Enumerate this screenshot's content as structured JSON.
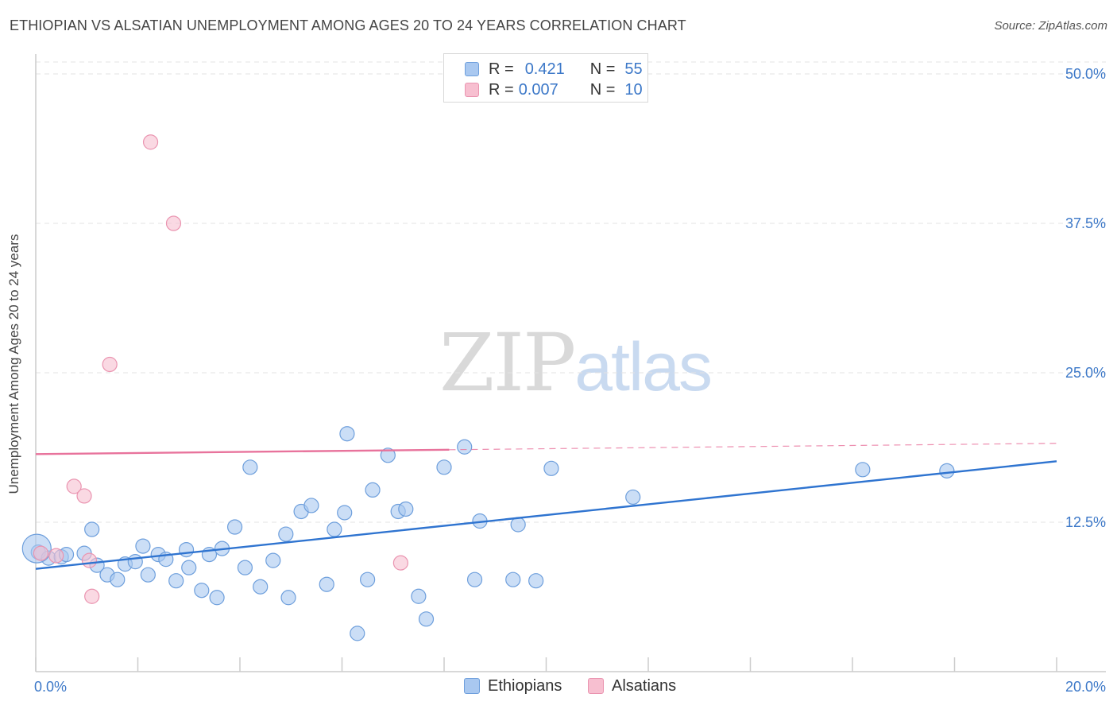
{
  "title": "ETHIOPIAN VS ALSATIAN UNEMPLOYMENT AMONG AGES 20 TO 24 YEARS CORRELATION CHART",
  "source": "Source: ZipAtlas.com",
  "watermark": {
    "zip": "ZIP",
    "atlas": "atlas"
  },
  "legend_top": {
    "rows": [
      {
        "r_label": "R =",
        "r_value": "0.421",
        "n_label": "N =",
        "n_value": "55"
      },
      {
        "r_label": "R =",
        "r_value": "0.007",
        "n_label": "N =",
        "n_value": "10"
      }
    ]
  },
  "legend_bottom": [
    "Ethiopians",
    "Alsatians"
  ],
  "chart_data": {
    "type": "scatter",
    "title": "ETHIOPIAN VS ALSATIAN UNEMPLOYMENT AMONG AGES 20 TO 24 YEARS CORRELATION CHART",
    "xlabel": "",
    "ylabel": "Unemployment Among Ages 20 to 24 years",
    "xlim": [
      0,
      20
    ],
    "ylim": [
      0,
      51
    ],
    "x_tick_labels": [
      "0.0%",
      "20.0%"
    ],
    "y_ticks": [
      12.5,
      25.0,
      37.5,
      50.0
    ],
    "y_tick_labels": [
      "12.5%",
      "25.0%",
      "37.5%",
      "50.0%"
    ],
    "grid": true,
    "colors": {
      "ethiopians_fill": "#a9c8f0",
      "ethiopians_stroke": "#6e9fdc",
      "ethiopians_line": "#2f74d0",
      "alsatians_fill": "#f7bfd0",
      "alsatians_stroke": "#ea94b0",
      "alsatians_line": "#e8739c",
      "tick_label": "#3c78c8",
      "grid": "#e3e3e3",
      "axis": "#cccccc"
    },
    "series": [
      {
        "name": "Ethiopians",
        "trend": {
          "x": [
            0,
            20
          ],
          "y": [
            8.6,
            17.6
          ],
          "dashed_from": null
        },
        "points": [
          [
            0.05,
            10.0
          ],
          [
            0.25,
            9.5
          ],
          [
            0.5,
            9.6
          ],
          [
            0.6,
            9.8
          ],
          [
            0.95,
            9.9
          ],
          [
            1.1,
            11.9
          ],
          [
            1.2,
            8.9
          ],
          [
            1.4,
            8.1
          ],
          [
            1.6,
            7.7
          ],
          [
            1.75,
            9.0
          ],
          [
            1.95,
            9.2
          ],
          [
            2.1,
            10.5
          ],
          [
            2.2,
            8.1
          ],
          [
            2.4,
            9.8
          ],
          [
            2.55,
            9.4
          ],
          [
            2.75,
            7.6
          ],
          [
            2.95,
            10.2
          ],
          [
            3.0,
            8.7
          ],
          [
            3.25,
            6.8
          ],
          [
            3.4,
            9.8
          ],
          [
            3.55,
            6.2
          ],
          [
            3.65,
            10.3
          ],
          [
            3.9,
            12.1
          ],
          [
            4.1,
            8.7
          ],
          [
            4.2,
            17.1
          ],
          [
            4.4,
            7.1
          ],
          [
            4.65,
            9.3
          ],
          [
            4.9,
            11.5
          ],
          [
            4.95,
            6.2
          ],
          [
            5.2,
            13.4
          ],
          [
            5.4,
            13.9
          ],
          [
            5.7,
            7.3
          ],
          [
            5.85,
            11.9
          ],
          [
            6.05,
            13.3
          ],
          [
            6.1,
            19.9
          ],
          [
            6.3,
            3.2
          ],
          [
            6.5,
            7.7
          ],
          [
            6.6,
            15.2
          ],
          [
            6.9,
            18.1
          ],
          [
            7.1,
            13.4
          ],
          [
            7.25,
            13.6
          ],
          [
            7.5,
            6.3
          ],
          [
            7.65,
            4.4
          ],
          [
            8.0,
            17.1
          ],
          [
            8.4,
            18.8
          ],
          [
            8.6,
            7.7
          ],
          [
            8.7,
            12.6
          ],
          [
            9.35,
            7.7
          ],
          [
            9.45,
            12.3
          ],
          [
            9.8,
            7.6
          ],
          [
            10.1,
            17.0
          ],
          [
            11.7,
            14.6
          ],
          [
            16.2,
            16.9
          ],
          [
            17.85,
            16.8
          ],
          [
            0.02,
            10.3
          ]
        ]
      },
      {
        "name": "Alsatians",
        "trend": {
          "x": [
            0,
            20
          ],
          "y": [
            18.2,
            19.1
          ],
          "dashed_from": 8.1
        },
        "points": [
          [
            0.1,
            9.9
          ],
          [
            0.4,
            9.7
          ],
          [
            0.75,
            15.5
          ],
          [
            0.95,
            14.7
          ],
          [
            1.05,
            9.3
          ],
          [
            1.1,
            6.3
          ],
          [
            1.45,
            25.7
          ],
          [
            2.25,
            44.3
          ],
          [
            2.7,
            37.5
          ],
          [
            7.15,
            9.1
          ]
        ]
      }
    ]
  }
}
